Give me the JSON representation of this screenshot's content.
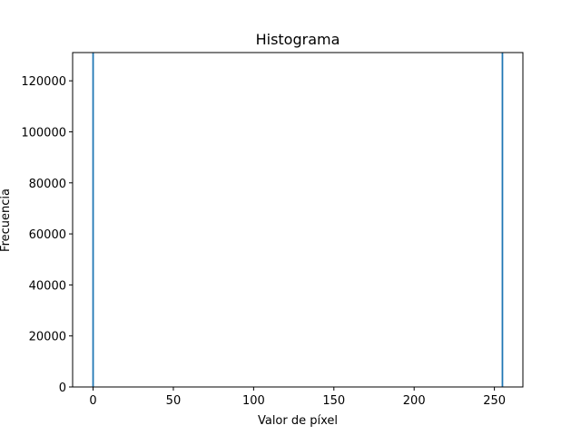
{
  "chart_data": {
    "type": "bar",
    "title": "Histograma",
    "xlabel": "Valor de píxel",
    "ylabel": "Frecuencia",
    "xlim": [
      -12.75,
      267.75
    ],
    "ylim": [
      0,
      131072
    ],
    "x_ticks": [
      0,
      50,
      100,
      150,
      200,
      250
    ],
    "y_ticks": [
      0,
      20000,
      40000,
      60000,
      80000,
      100000,
      120000
    ],
    "bar_width": 1,
    "bars": [
      {
        "x": 0,
        "value": 131072
      },
      {
        "x": 255,
        "value": 131072
      }
    ],
    "bar_color": "#1f77b4",
    "grid": false,
    "legend": false
  }
}
